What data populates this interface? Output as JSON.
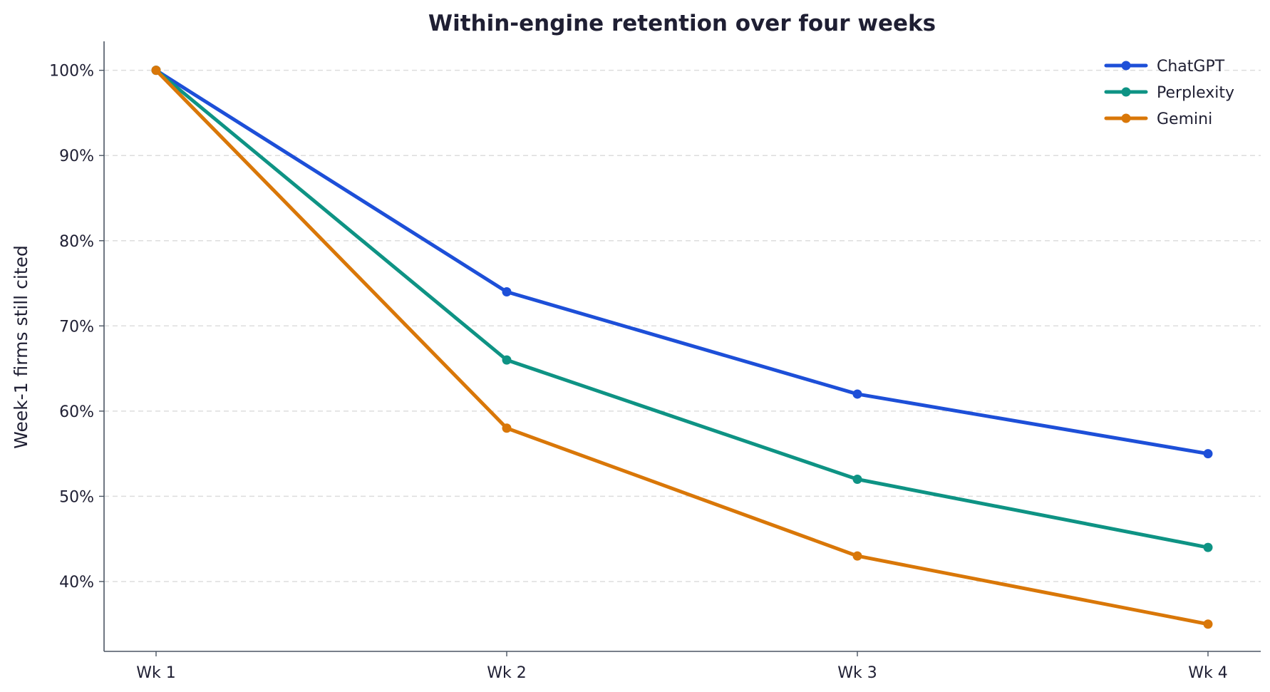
{
  "chart_data": {
    "type": "line",
    "title": "Within-engine retention over four weeks",
    "xlabel": "",
    "ylabel": "Week-1 firms still cited",
    "categories": [
      "Wk 1",
      "Wk 2",
      "Wk 3",
      "Wk 4"
    ],
    "y_ticks": [
      40,
      50,
      60,
      70,
      80,
      90,
      100
    ],
    "y_tick_labels": [
      "40%",
      "50%",
      "60%",
      "70%",
      "80%",
      "90%",
      "100%"
    ],
    "ylim": [
      31.8,
      103.4
    ],
    "grid": "horizontal dashed",
    "legend": "top-right",
    "series": [
      {
        "name": "ChatGPT",
        "values": [
          100,
          74,
          62,
          55
        ],
        "color": "#1d4fd8"
      },
      {
        "name": "Perplexity",
        "values": [
          100,
          66,
          52,
          44
        ],
        "color": "#0e9384"
      },
      {
        "name": "Gemini",
        "values": [
          100,
          58,
          43,
          35
        ],
        "color": "#d97708"
      }
    ]
  }
}
